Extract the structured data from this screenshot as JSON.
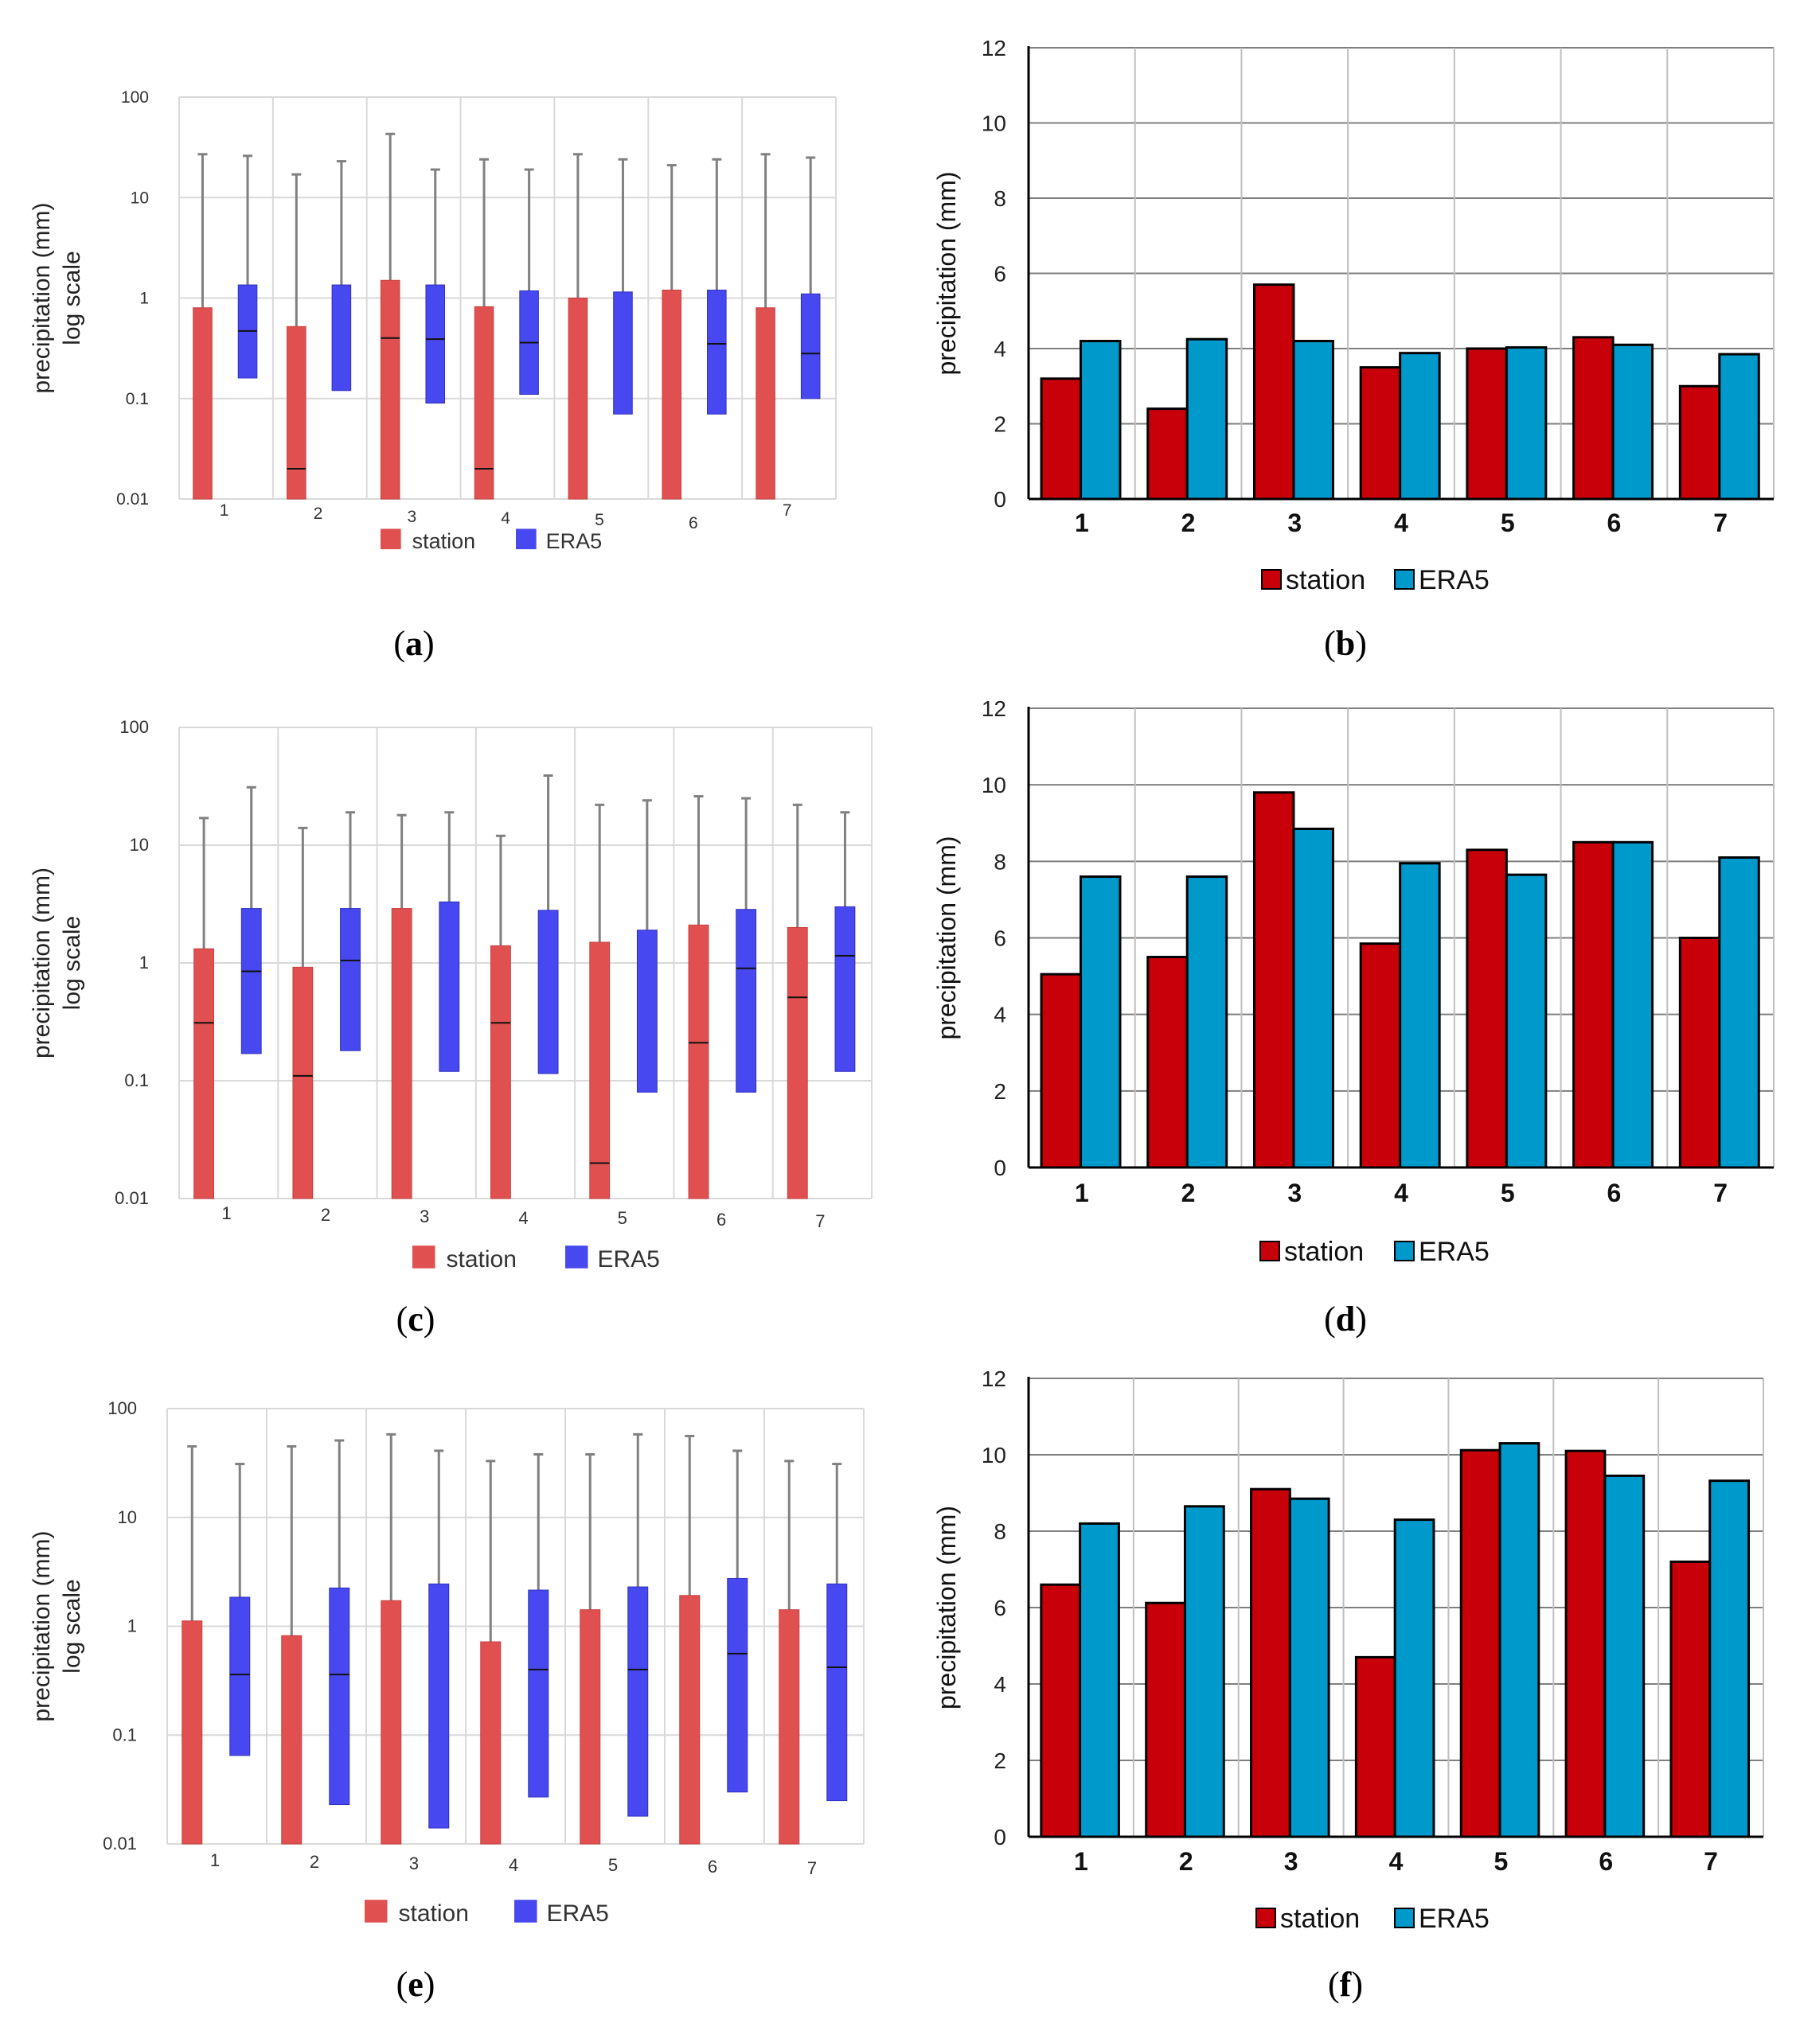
{
  "colors": {
    "station_box": "#e05050",
    "era5_box": "#4848f0",
    "station_bar": "#c8000a",
    "era5_bar": "#0099cc",
    "whisker": "#808080",
    "grid_box": "#d9d9d9",
    "grid_bar": "#7f7f7f",
    "axis": "#000000"
  },
  "chart_data": [
    {
      "id": "a",
      "panel_label": "a",
      "type": "boxplot",
      "ylabel": "precipitation (mm)",
      "ylabel2": "log scale",
      "yscale": "log",
      "ylim": [
        0.01,
        100
      ],
      "yticks": [
        "0.01",
        "0.1",
        "1",
        "10",
        "100"
      ],
      "categories": [
        "1",
        "2",
        "3",
        "4",
        "5",
        "6",
        "7"
      ],
      "legend": [
        "station",
        "ERA5"
      ],
      "series": [
        {
          "name": "station",
          "q1": [
            0.01,
            0.01,
            0.01,
            0.01,
            0.01,
            0.01,
            0.01
          ],
          "median": [
            null,
            0.02,
            0.4,
            0.02,
            null,
            null,
            null
          ],
          "q3": [
            0.8,
            0.52,
            1.5,
            0.82,
            1.0,
            1.2,
            0.8
          ],
          "max": [
            27,
            17,
            43,
            24,
            27,
            21,
            27
          ]
        },
        {
          "name": "ERA5",
          "q1": [
            0.16,
            0.12,
            0.09,
            0.11,
            0.07,
            0.07,
            0.1
          ],
          "median": [
            0.47,
            null,
            0.39,
            0.36,
            null,
            0.35,
            0.28
          ],
          "q3": [
            1.35,
            1.35,
            1.35,
            1.18,
            1.15,
            1.2,
            1.1
          ],
          "max": [
            26,
            23,
            19,
            19,
            24,
            24,
            25
          ]
        }
      ]
    },
    {
      "id": "b",
      "panel_label": "b",
      "type": "bar",
      "ylabel": "precipitation (mm)",
      "ylim": [
        0,
        12
      ],
      "yticks": [
        "0",
        "2",
        "4",
        "6",
        "8",
        "10",
        "12"
      ],
      "categories": [
        "1",
        "2",
        "3",
        "4",
        "5",
        "6",
        "7"
      ],
      "legend": [
        "station",
        "ERA5"
      ],
      "series": [
        {
          "name": "station",
          "values": [
            3.2,
            2.4,
            5.7,
            3.5,
            4.0,
            4.3,
            3.0
          ]
        },
        {
          "name": "ERA5",
          "values": [
            4.2,
            4.25,
            4.2,
            3.88,
            4.03,
            4.1,
            3.85
          ]
        }
      ]
    },
    {
      "id": "c",
      "panel_label": "c",
      "type": "boxplot",
      "ylabel": "precipitation (mm)",
      "ylabel2": "log scale",
      "yscale": "log",
      "ylim": [
        0.01,
        100
      ],
      "yticks": [
        "0.01",
        "0.1",
        "1",
        "10",
        "100"
      ],
      "categories": [
        "1",
        "2",
        "3",
        "4",
        "5",
        "6",
        "7"
      ],
      "legend": [
        "station",
        "ERA5"
      ],
      "series": [
        {
          "name": "station",
          "q1": [
            0.01,
            0.01,
            0.01,
            0.01,
            0.01,
            0.01,
            0.01
          ],
          "median": [
            0.31,
            0.11,
            null,
            0.31,
            0.02,
            0.21,
            0.51
          ],
          "q3": [
            1.32,
            0.92,
            2.9,
            1.4,
            1.5,
            2.1,
            2.0
          ],
          "max": [
            17,
            14,
            18,
            12,
            22,
            26,
            22
          ]
        },
        {
          "name": "ERA5",
          "q1": [
            0.17,
            0.18,
            0.12,
            0.115,
            0.08,
            0.08,
            0.12
          ],
          "median": [
            0.85,
            1.05,
            null,
            null,
            null,
            0.9,
            1.15
          ],
          "q3": [
            2.9,
            2.9,
            3.3,
            2.8,
            1.9,
            2.85,
            3.0
          ],
          "max": [
            31,
            19,
            19,
            39,
            24,
            25,
            19
          ]
        }
      ]
    },
    {
      "id": "d",
      "panel_label": "d",
      "type": "bar",
      "ylabel": "precipitation (mm)",
      "ylim": [
        0,
        12
      ],
      "yticks": [
        "0",
        "2",
        "4",
        "6",
        "8",
        "10",
        "12"
      ],
      "categories": [
        "1",
        "2",
        "3",
        "4",
        "5",
        "6",
        "7"
      ],
      "legend": [
        "station",
        "ERA5"
      ],
      "series": [
        {
          "name": "station",
          "values": [
            5.05,
            5.5,
            9.8,
            5.85,
            8.3,
            8.5,
            6.0
          ]
        },
        {
          "name": "ERA5",
          "values": [
            7.6,
            7.6,
            8.85,
            7.95,
            7.65,
            8.5,
            8.1
          ]
        }
      ]
    },
    {
      "id": "e",
      "panel_label": "e",
      "type": "boxplot",
      "ylabel": "precipitation (mm)",
      "ylabel2": "log scale",
      "yscale": "log",
      "ylim": [
        0.01,
        100
      ],
      "yticks": [
        "0.01",
        "0.1",
        "1",
        "10",
        "100"
      ],
      "categories": [
        "1",
        "2",
        "3",
        "4",
        "5",
        "6",
        "7"
      ],
      "legend": [
        "station",
        "ERA5"
      ],
      "series": [
        {
          "name": "station",
          "q1": [
            0.01,
            0.01,
            0.01,
            0.01,
            0.01,
            0.01,
            0.01
          ],
          "median": [
            null,
            null,
            null,
            null,
            null,
            null,
            null
          ],
          "q3": [
            1.12,
            0.82,
            1.72,
            0.72,
            1.42,
            1.92,
            1.42
          ],
          "max": [
            45,
            45,
            58,
            33,
            38,
            56,
            33
          ]
        },
        {
          "name": "ERA5",
          "q1": [
            0.065,
            0.023,
            0.014,
            0.027,
            0.018,
            0.03,
            0.025
          ],
          "median": [
            0.36,
            0.36,
            null,
            0.4,
            0.4,
            0.56,
            0.42
          ],
          "q3": [
            1.85,
            2.25,
            2.45,
            2.15,
            2.3,
            2.75,
            2.45
          ],
          "max": [
            31,
            51,
            41,
            38,
            58,
            41,
            31
          ]
        }
      ]
    },
    {
      "id": "f",
      "panel_label": "f",
      "type": "bar",
      "ylabel": "precipitation (mm)",
      "ylim": [
        0,
        12
      ],
      "yticks": [
        "0",
        "2",
        "4",
        "6",
        "8",
        "10",
        "12"
      ],
      "categories": [
        "1",
        "2",
        "3",
        "4",
        "5",
        "6",
        "7"
      ],
      "legend": [
        "station",
        "ERA5"
      ],
      "series": [
        {
          "name": "station",
          "values": [
            6.6,
            6.12,
            9.1,
            4.7,
            10.12,
            10.1,
            7.2
          ]
        },
        {
          "name": "ERA5",
          "values": [
            8.2,
            8.65,
            8.85,
            8.3,
            10.3,
            9.45,
            9.32
          ]
        }
      ]
    }
  ]
}
